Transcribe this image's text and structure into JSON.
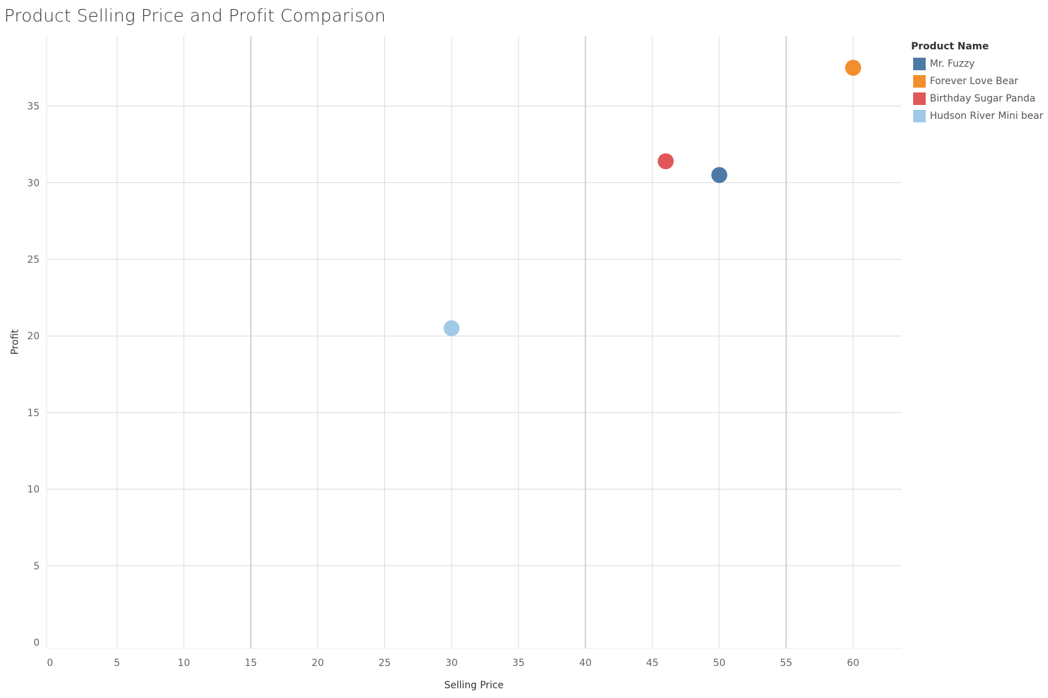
{
  "chart_data": {
    "type": "scatter",
    "title": "Product Selling Price and Profit Comparison",
    "xlabel": "Selling Price",
    "ylabel": "Profit",
    "xlim": [
      0,
      63
    ],
    "ylim": [
      0,
      38
    ],
    "xticks": [
      0,
      5,
      10,
      15,
      20,
      25,
      30,
      35,
      40,
      45,
      50,
      55,
      60
    ],
    "yticks": [
      0,
      5,
      10,
      15,
      20,
      25,
      30,
      35
    ],
    "grid": true,
    "legend": {
      "title": "Product Name",
      "position": "right"
    },
    "series": [
      {
        "name": "Mr. Fuzzy",
        "color": "#4e79a7",
        "points": [
          {
            "x": 50,
            "y": 30.5
          }
        ]
      },
      {
        "name": "Forever Love Bear",
        "color": "#f28e2b",
        "points": [
          {
            "x": 60,
            "y": 37.5
          }
        ]
      },
      {
        "name": "Birthday Sugar Panda",
        "color": "#e15759",
        "points": [
          {
            "x": 46,
            "y": 31.4
          }
        ]
      },
      {
        "name": "Hudson River Mini bear",
        "color": "#a0cbe8",
        "points": [
          {
            "x": 30,
            "y": 20.5
          }
        ]
      }
    ]
  }
}
